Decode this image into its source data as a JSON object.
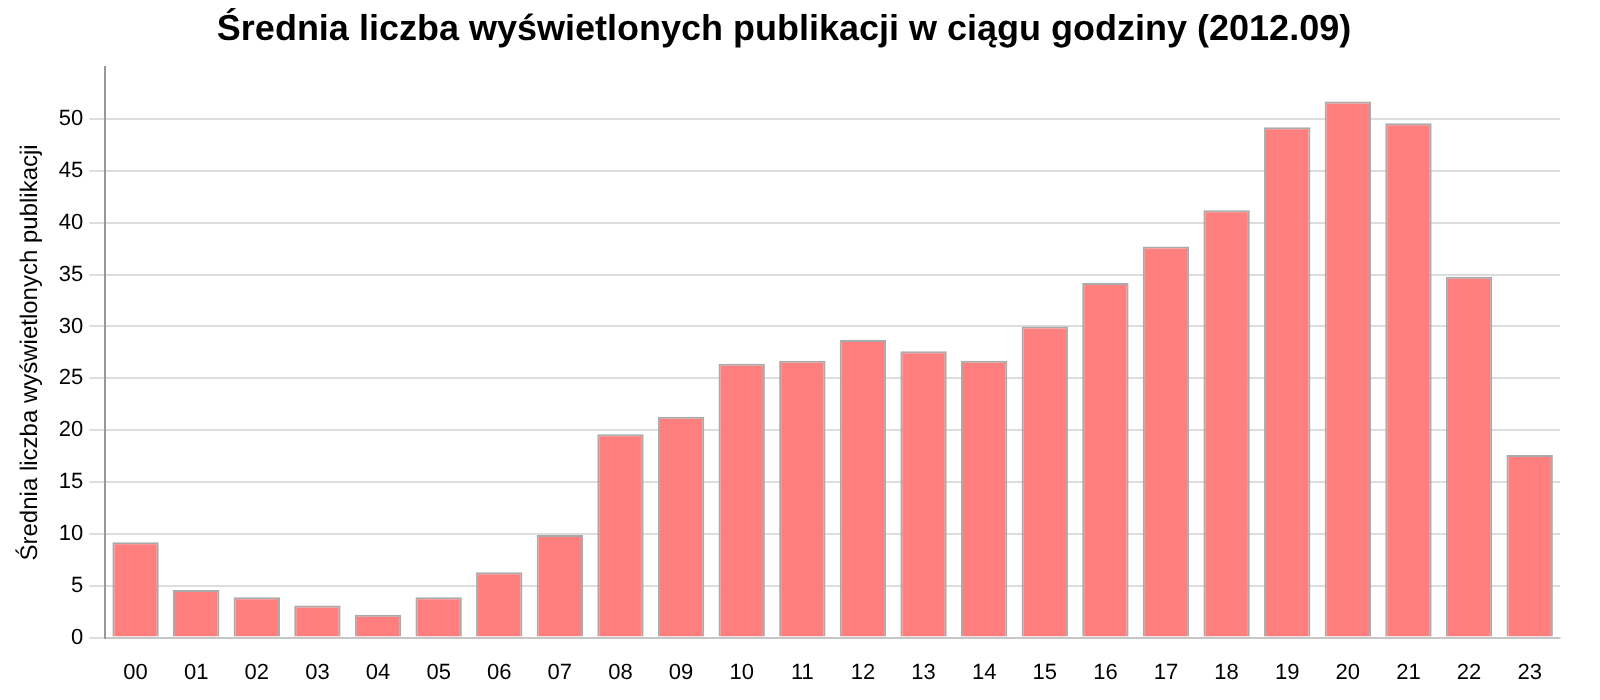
{
  "chart_data": {
    "type": "bar",
    "title": "Średnia liczba wyświetlonych publikacji w ciągu godziny (2012.09)",
    "ylabel": "Średnia liczba wyświetlonych publikacji",
    "categories": [
      "00",
      "01",
      "02",
      "03",
      "04",
      "05",
      "06",
      "07",
      "08",
      "09",
      "10",
      "11",
      "12",
      "13",
      "14",
      "15",
      "16",
      "17",
      "18",
      "19",
      "20",
      "21",
      "22",
      "23"
    ],
    "values": [
      9.2,
      4.6,
      3.9,
      3.1,
      2.2,
      3.9,
      6.3,
      9.9,
      19.6,
      21.3,
      26.4,
      26.7,
      28.7,
      27.6,
      26.7,
      30.0,
      34.2,
      37.7,
      41.2,
      49.2,
      51.7,
      49.6,
      34.8,
      17.6
    ],
    "color": "#ff7f7f",
    "ylim": [
      0,
      55
    ],
    "yticks": [
      0,
      5,
      10,
      15,
      20,
      25,
      30,
      35,
      40,
      45,
      50
    ],
    "grid": "y",
    "legend": false
  }
}
